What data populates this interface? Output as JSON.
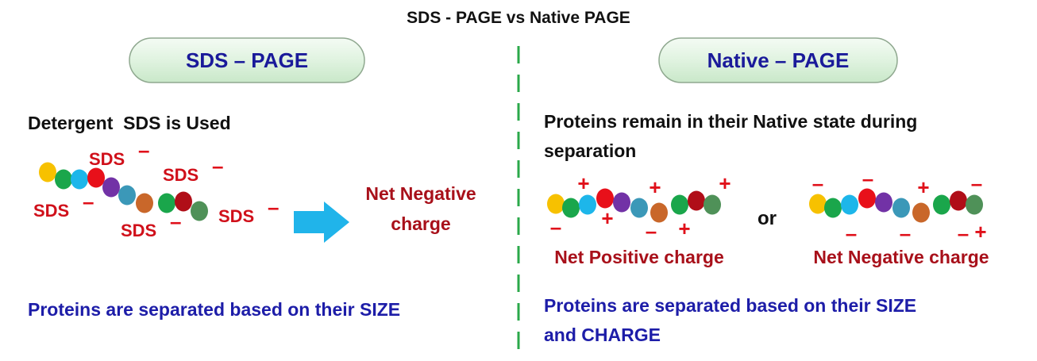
{
  "title": "SDS - PAGE vs Native PAGE",
  "left": {
    "header": "SDS – PAGE",
    "statement": "Detergent  SDS is Used",
    "sds_labels": [
      "SDS",
      "SDS",
      "SDS",
      "SDS",
      "SDS"
    ],
    "sds_sign": "-",
    "result_line1": "Net Negative",
    "result_line2": "charge",
    "conclusion": "Proteins are separated based on their SIZE"
  },
  "right": {
    "header": "Native – PAGE",
    "statement_line1": "Proteins remain in their Native state during",
    "statement_line2": "separation",
    "chain1_signs": [
      "+",
      "+",
      "+",
      "+",
      "+",
      "-",
      "-"
    ],
    "chain1_label": "Net Positive charge",
    "or": "or",
    "chain2_signs": [
      "-",
      "-",
      "+",
      "-",
      "-",
      "-",
      "-",
      "+"
    ],
    "chain2_label": "Net Negative charge",
    "conclusion_line1": "Proteins are separated based on their SIZE",
    "conclusion_line2": "and CHARGE"
  },
  "colors": {
    "bead_sequence": [
      "#f7c100",
      "#1aa64b",
      "#1db6ea",
      "#e8101a",
      "#7232a6",
      "#3b98b8",
      "#c9672a",
      "#1aa64b",
      "#b00e18",
      "#4f9158"
    ],
    "arrow": "#20b4ea",
    "divider": "#2aa84a",
    "pill_fill": "#e3f5e3",
    "heading_blue": "#1a1a9a",
    "label_red": "#d0101a"
  }
}
